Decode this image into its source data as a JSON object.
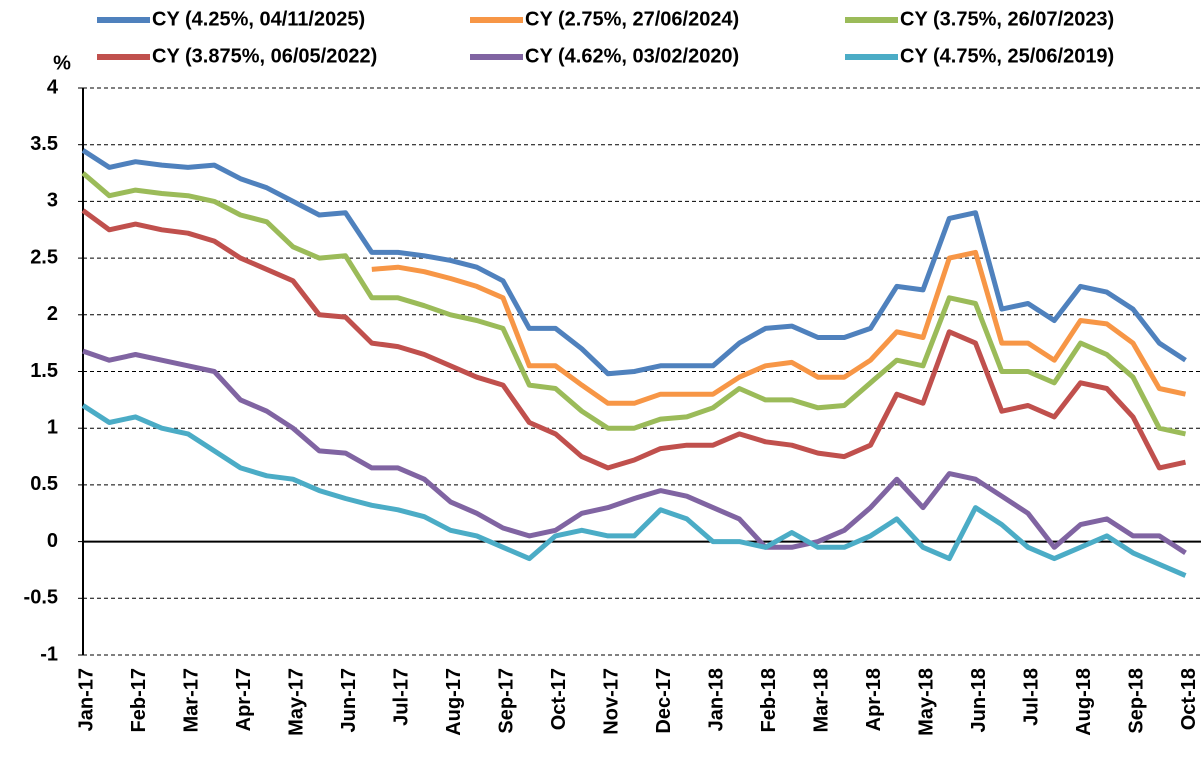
{
  "chart_data": {
    "type": "line",
    "y_label": "%",
    "categories": [
      "Jan-17",
      null,
      "Feb-17",
      null,
      "Mar-17",
      null,
      "Apr-17",
      null,
      "May-17",
      null,
      "Jun-17",
      null,
      "Jul-17",
      null,
      "Aug-17",
      null,
      "Sep-17",
      null,
      "Oct-17",
      null,
      "Nov-17",
      null,
      "Dec-17",
      null,
      "Jan-18",
      null,
      "Feb-18",
      null,
      "Mar-18",
      null,
      "Apr-18",
      null,
      "May-18",
      null,
      "Jun-18",
      null,
      "Jul-18",
      null,
      "Aug-18",
      null,
      "Sep-18",
      null,
      "Oct-18"
    ],
    "ylim": [
      -1,
      4
    ],
    "yticks": [
      -1,
      -0.5,
      0,
      0.5,
      1,
      1.5,
      2,
      2.5,
      3,
      3.5,
      4
    ],
    "grid": true,
    "series": [
      {
        "name": "CY (4.25%, 04/11/2025)",
        "color": "#4f81bd",
        "values": [
          3.45,
          3.3,
          3.35,
          3.32,
          3.3,
          3.32,
          3.2,
          3.12,
          3.0,
          2.88,
          2.9,
          2.55,
          2.55,
          2.52,
          2.48,
          2.42,
          2.3,
          1.88,
          1.88,
          1.7,
          1.48,
          1.5,
          1.55,
          1.55,
          1.55,
          1.75,
          1.88,
          1.9,
          1.8,
          1.8,
          1.88,
          2.25,
          2.22,
          2.85,
          2.9,
          2.05,
          2.1,
          1.95,
          2.25,
          2.2,
          2.05,
          1.75,
          1.6
        ]
      },
      {
        "name": "CY (2.75%, 27/06/2024)",
        "color": "#f79646",
        "values": [
          null,
          null,
          null,
          null,
          null,
          null,
          null,
          null,
          null,
          null,
          null,
          2.4,
          2.42,
          2.38,
          2.32,
          2.25,
          2.15,
          1.55,
          1.55,
          1.38,
          1.22,
          1.22,
          1.3,
          1.3,
          1.3,
          1.45,
          1.55,
          1.58,
          1.45,
          1.45,
          1.6,
          1.85,
          1.8,
          2.5,
          2.55,
          1.75,
          1.75,
          1.6,
          1.95,
          1.92,
          1.75,
          1.35,
          1.3
        ]
      },
      {
        "name": "CY (3.75%, 26/07/2023)",
        "color": "#9bbb59",
        "values": [
          3.25,
          3.05,
          3.1,
          3.07,
          3.05,
          3.0,
          2.88,
          2.82,
          2.6,
          2.5,
          2.52,
          2.15,
          2.15,
          2.08,
          2.0,
          1.95,
          1.88,
          1.38,
          1.35,
          1.15,
          1.0,
          1.0,
          1.08,
          1.1,
          1.18,
          1.35,
          1.25,
          1.25,
          1.18,
          1.2,
          1.4,
          1.6,
          1.55,
          2.15,
          2.1,
          1.5,
          1.5,
          1.4,
          1.75,
          1.65,
          1.45,
          1.0,
          0.95
        ]
      },
      {
        "name": "CY (3.875%, 06/05/2022)",
        "color": "#c0504d",
        "values": [
          2.92,
          2.75,
          2.8,
          2.75,
          2.72,
          2.65,
          2.5,
          2.4,
          2.3,
          2.0,
          1.98,
          1.75,
          1.72,
          1.65,
          1.55,
          1.45,
          1.38,
          1.05,
          0.95,
          0.75,
          0.65,
          0.72,
          0.82,
          0.85,
          0.85,
          0.95,
          0.88,
          0.85,
          0.78,
          0.75,
          0.85,
          1.3,
          1.22,
          1.85,
          1.75,
          1.15,
          1.2,
          1.1,
          1.4,
          1.35,
          1.1,
          0.65,
          0.7
        ]
      },
      {
        "name": "CY (4.62%, 03/02/2020)",
        "color": "#8064a2",
        "values": [
          1.68,
          1.6,
          1.65,
          1.6,
          1.55,
          1.5,
          1.25,
          1.15,
          1.0,
          0.8,
          0.78,
          0.65,
          0.65,
          0.55,
          0.35,
          0.25,
          0.12,
          0.05,
          0.1,
          0.25,
          0.3,
          0.38,
          0.45,
          0.4,
          0.3,
          0.2,
          -0.05,
          -0.05,
          0.0,
          0.1,
          0.3,
          0.55,
          0.3,
          0.6,
          0.55,
          0.4,
          0.25,
          -0.05,
          0.15,
          0.2,
          0.05,
          0.05,
          -0.1
        ]
      },
      {
        "name": "CY (4.75%, 25/06/2019)",
        "color": "#4bacc6",
        "values": [
          1.2,
          1.05,
          1.1,
          1.0,
          0.95,
          0.8,
          0.65,
          0.58,
          0.55,
          0.45,
          0.38,
          0.32,
          0.28,
          0.22,
          0.1,
          0.05,
          -0.05,
          -0.15,
          0.05,
          0.1,
          0.05,
          0.05,
          0.28,
          0.2,
          0.0,
          0.0,
          -0.05,
          0.08,
          -0.05,
          -0.05,
          0.05,
          0.2,
          -0.05,
          -0.15,
          0.3,
          0.15,
          -0.05,
          -0.15,
          -0.05,
          0.05,
          -0.1,
          -0.2,
          -0.3
        ]
      }
    ]
  }
}
